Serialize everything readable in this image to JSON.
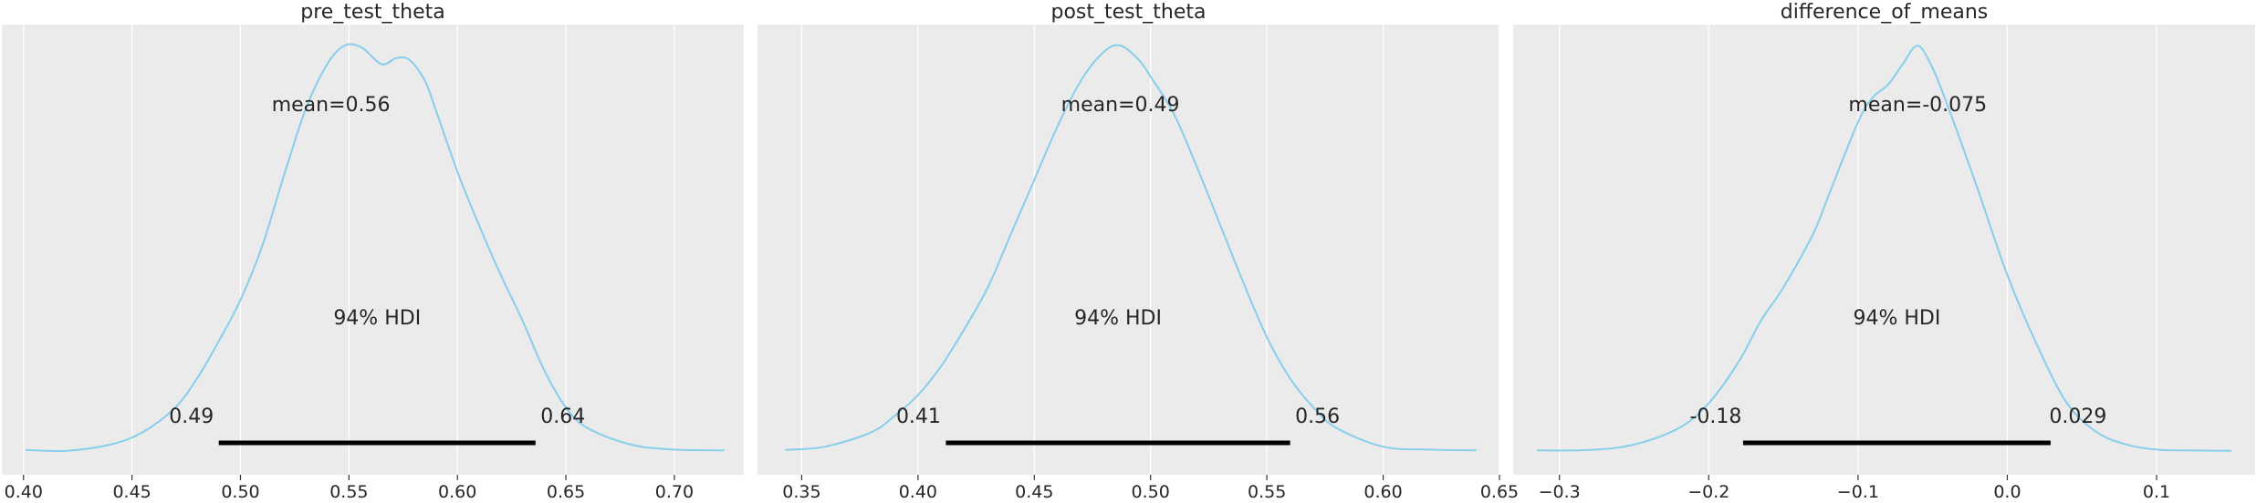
{
  "colors": {
    "background": "#ebebeb",
    "grid": "#ffffff",
    "curve": "#87ceeb",
    "hdi": "#000000",
    "text": "#262626"
  },
  "chart_data": [
    {
      "type": "area",
      "title": "pre_test_theta",
      "mean_label": "mean=0.56",
      "hdi_label": "94% HDI",
      "hdi": [
        0.49,
        0.636
      ],
      "hdi_low_label": "0.49",
      "hdi_high_label": "0.64",
      "xlim": [
        0.39,
        0.732
      ],
      "xticks": [
        0.4,
        0.45,
        0.5,
        0.55,
        0.6,
        0.65,
        0.7
      ],
      "xtick_labels": [
        "0.40",
        "0.45",
        "0.50",
        "0.55",
        "0.60",
        "0.65",
        "0.70"
      ],
      "grid": true,
      "density": {
        "x": [
          0.401,
          0.42,
          0.44,
          0.455,
          0.47,
          0.48,
          0.49,
          0.5,
          0.51,
          0.52,
          0.53,
          0.54,
          0.548,
          0.556,
          0.565,
          0.572,
          0.578,
          0.585,
          0.59,
          0.6,
          0.61,
          0.62,
          0.63,
          0.64,
          0.65,
          0.66,
          0.68,
          0.7,
          0.723
        ],
        "y": [
          0.007,
          0.005,
          0.02,
          0.05,
          0.11,
          0.18,
          0.27,
          0.37,
          0.5,
          0.67,
          0.83,
          0.94,
          0.985,
          0.98,
          0.94,
          0.955,
          0.95,
          0.9,
          0.83,
          0.68,
          0.55,
          0.43,
          0.32,
          0.2,
          0.11,
          0.06,
          0.02,
          0.008,
          0.006
        ]
      }
    },
    {
      "type": "area",
      "title": "post_test_theta",
      "mean_label": "mean=0.49",
      "hdi_label": "94% HDI",
      "hdi": [
        0.412,
        0.56
      ],
      "hdi_low_label": "0.41",
      "hdi_high_label": "0.56",
      "xlim": [
        0.331,
        0.65
      ],
      "xticks": [
        0.35,
        0.4,
        0.45,
        0.5,
        0.55,
        0.6,
        0.65
      ],
      "xtick_labels": [
        "0.35",
        "0.40",
        "0.45",
        "0.50",
        "0.55",
        "0.60",
        "0.65"
      ],
      "grid": true,
      "density": {
        "x": [
          0.343,
          0.36,
          0.38,
          0.39,
          0.4,
          0.41,
          0.42,
          0.43,
          0.44,
          0.45,
          0.46,
          0.47,
          0.48,
          0.487,
          0.495,
          0.5,
          0.51,
          0.52,
          0.53,
          0.54,
          0.55,
          0.56,
          0.57,
          0.58,
          0.6,
          0.62,
          0.64
        ],
        "y": [
          0.007,
          0.015,
          0.05,
          0.09,
          0.14,
          0.21,
          0.3,
          0.4,
          0.53,
          0.66,
          0.79,
          0.9,
          0.97,
          0.985,
          0.95,
          0.91,
          0.82,
          0.69,
          0.55,
          0.41,
          0.28,
          0.18,
          0.11,
          0.06,
          0.015,
          0.008,
          0.006
        ]
      }
    },
    {
      "type": "area",
      "title": "difference_of_means",
      "mean_label": "mean=-0.075",
      "hdi_label": "94% HDI",
      "hdi": [
        -0.177,
        0.029
      ],
      "hdi_low_label": "-0.18",
      "hdi_high_label": "0.029",
      "xlim": [
        -0.331,
        0.166
      ],
      "xticks": [
        -0.3,
        -0.2,
        -0.1,
        0.0,
        0.1
      ],
      "xtick_labels": [
        "−0.3",
        "−0.2",
        "−0.1",
        "0.0",
        "0.1"
      ],
      "grid": true,
      "density": {
        "x": [
          -0.315,
          -0.28,
          -0.25,
          -0.22,
          -0.2,
          -0.18,
          -0.165,
          -0.15,
          -0.13,
          -0.12,
          -0.1,
          -0.09,
          -0.08,
          -0.07,
          -0.06,
          -0.05,
          -0.04,
          -0.02,
          0.0,
          0.02,
          0.04,
          0.06,
          0.08,
          0.1,
          0.12,
          0.15
        ],
        "y": [
          0.006,
          0.007,
          0.02,
          0.06,
          0.12,
          0.22,
          0.32,
          0.4,
          0.53,
          0.62,
          0.8,
          0.86,
          0.89,
          0.94,
          0.985,
          0.93,
          0.84,
          0.64,
          0.43,
          0.26,
          0.12,
          0.05,
          0.02,
          0.008,
          0.006,
          0.005
        ]
      }
    }
  ]
}
